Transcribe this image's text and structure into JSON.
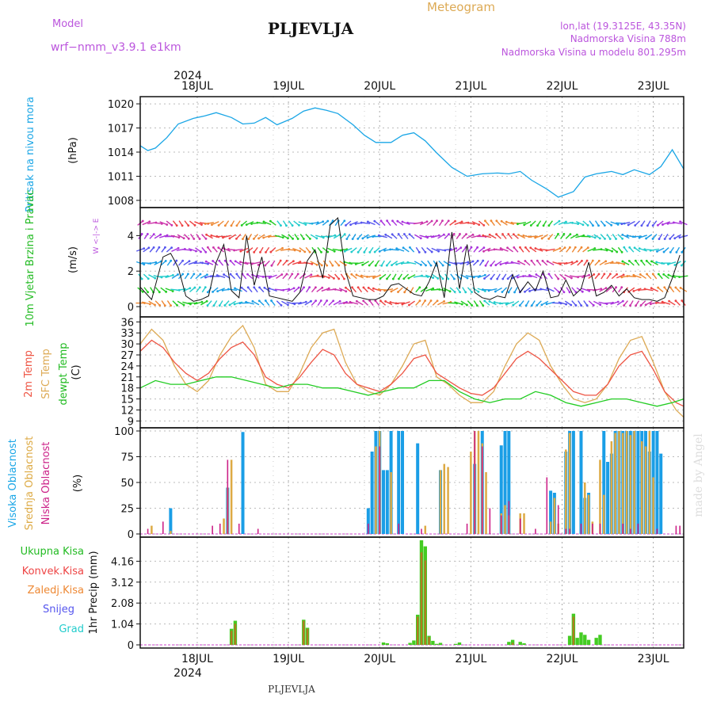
{
  "header": {
    "model_label": "Model",
    "model_name": "wrf−nmm_v3.9.1  e1km",
    "station": "PLJEVLJA",
    "product": "Meteogram",
    "lonlat": "lon,lat (19.3125E, 43.35N)",
    "altitude": "Nadmorska Visina 788m",
    "model_altitude": "Nadmorska Visina u modelu 801.295m",
    "footer_station": "PLJEVLJA",
    "watermark": "made by Angel"
  },
  "colors": {
    "pressure": "#1aa6e6",
    "t2m": "#ee5544",
    "sfc": "#ddaa55",
    "dew": "#22cc22",
    "high_cloud": "#1a9ee6",
    "mid_cloud": "#ddaa44",
    "low_cloud": "#cc2288",
    "total_precip": "#44cc22",
    "conv_precip": "#ee4444",
    "frozen_precip": "#ee8833",
    "snow": "#5555ee",
    "hail": "#22cccc",
    "title_purple": "#bb55dd",
    "meteogram_orange": "#ddaa55"
  },
  "time_axis": {
    "year": "2024",
    "labels": [
      "18JUL",
      "19JUL",
      "20JUL",
      "21JUL",
      "22JUL",
      "23JUL"
    ]
  },
  "chart_data": [
    {
      "type": "line",
      "panel": "pressure",
      "ylabel": "Pritisak na nivou mora",
      "unit": "(hPa)",
      "yticks": [
        "1008",
        "1011",
        "1014",
        "1017",
        "1020"
      ],
      "ylim": [
        1007.5,
        1020.5
      ],
      "xlim": [
        0,
        143
      ],
      "series": [
        {
          "x": [
            0,
            2,
            4,
            7,
            10,
            14,
            17,
            20,
            24,
            27,
            30,
            33,
            36,
            40,
            43,
            46,
            49,
            52,
            56,
            59,
            62,
            66,
            69,
            72,
            75,
            78,
            82,
            86,
            90,
            94,
            97,
            100,
            103,
            107,
            110,
            114,
            117,
            120,
            124,
            127,
            130,
            134,
            137,
            140,
            143
          ],
          "values": [
            1014.8,
            1014.2,
            1014.5,
            1015.8,
            1017.5,
            1018.2,
            1018.5,
            1018.9,
            1018.3,
            1017.5,
            1017.6,
            1018.3,
            1017.4,
            1018.2,
            1019.1,
            1019.5,
            1019.2,
            1018.8,
            1017.4,
            1016.1,
            1015.2,
            1015.2,
            1016.1,
            1016.4,
            1015.4,
            1013.9,
            1012.1,
            1011.0,
            1011.3,
            1011.4,
            1011.3,
            1011.6,
            1010.5,
            1009.4,
            1008.4,
            1009.1,
            1010.9,
            1011.3,
            1011.6,
            1011.2,
            1011.8,
            1011.2,
            1012.2,
            1014.3,
            1011.9
          ]
        }
      ]
    },
    {
      "type": "scatter",
      "panel": "wind",
      "ylabel": "10m Vjetar Brzina i Pravac",
      "unit": "(m/s)",
      "yticks": [
        "0",
        "2",
        "4"
      ],
      "ylim": [
        -0.4,
        5.4
      ],
      "compass": "W <-|-> E",
      "series": [
        {
          "name": "speed",
          "x": [
            0,
            3,
            6,
            8,
            10,
            12,
            14,
            16,
            18,
            20,
            22,
            24,
            26,
            28,
            30,
            32,
            34,
            36,
            38,
            40,
            42,
            44,
            46,
            48,
            50,
            52,
            54,
            56,
            58,
            60,
            62,
            64,
            66,
            68,
            70,
            72,
            74,
            76,
            78,
            80,
            82,
            84,
            86,
            88,
            90,
            92,
            94,
            96,
            98,
            100,
            102,
            104,
            106,
            108,
            110,
            112,
            114,
            116,
            118,
            120,
            122,
            124,
            126,
            128,
            130,
            132,
            134,
            136,
            138,
            140,
            142
          ],
          "values": [
            1.1,
            0.4,
            2.8,
            3.0,
            2.2,
            0.6,
            0.3,
            0.4,
            0.6,
            2.5,
            3.5,
            0.9,
            0.5,
            4.0,
            1.2,
            2.8,
            0.6,
            0.5,
            0.4,
            0.3,
            0.8,
            2.6,
            3.2,
            1.6,
            4.6,
            5.0,
            2.0,
            0.6,
            0.5,
            0.4,
            0.4,
            0.6,
            1.2,
            1.3,
            1.0,
            0.7,
            0.6,
            1.4,
            2.5,
            0.5,
            4.2,
            1.0,
            3.5,
            0.8,
            0.5,
            0.4,
            0.6,
            0.5,
            1.8,
            0.8,
            1.4,
            0.9,
            2.0,
            0.5,
            0.6,
            1.5,
            0.6,
            1.0,
            2.5,
            0.6,
            0.8,
            1.2,
            0.6,
            1.0,
            0.5,
            0.4,
            0.4,
            0.3,
            0.5,
            1.6,
            2.9
          ]
        }
      ]
    },
    {
      "type": "line",
      "panel": "temperature",
      "ylabel": "2m Temp / SFC Temp / dewpt Temp",
      "unit": "(C)",
      "yticks": [
        "9",
        "12",
        "15",
        "18",
        "21",
        "24",
        "27",
        "30",
        "33",
        "36"
      ],
      "ylim": [
        8,
        36.5
      ],
      "series": [
        {
          "name": "2m Temp",
          "x": [
            0,
            3,
            6,
            9,
            12,
            15,
            18,
            21,
            24,
            27,
            30,
            33,
            36,
            39,
            42,
            45,
            48,
            51,
            54,
            57,
            60,
            63,
            66,
            69,
            72,
            75,
            78,
            81,
            84,
            87,
            90,
            93,
            96,
            99,
            102,
            105,
            108,
            111,
            114,
            117,
            120,
            123,
            126,
            129,
            132,
            135,
            138,
            141,
            143
          ],
          "values": [
            28,
            31,
            29,
            25,
            22,
            20,
            22,
            26,
            29,
            30.5,
            27,
            21,
            19,
            18,
            21,
            25,
            28.5,
            27,
            22,
            19,
            18,
            17,
            19,
            22,
            26,
            27,
            22,
            20,
            18,
            16.5,
            16,
            18,
            22,
            26,
            28,
            26,
            23,
            20,
            17,
            16,
            16,
            19,
            24,
            27,
            28,
            23,
            17,
            14,
            13
          ]
        },
        {
          "name": "SFC Temp",
          "x": [
            0,
            3,
            6,
            9,
            12,
            15,
            18,
            21,
            24,
            27,
            30,
            33,
            36,
            39,
            42,
            45,
            48,
            51,
            54,
            57,
            60,
            63,
            66,
            69,
            72,
            75,
            78,
            81,
            84,
            87,
            90,
            93,
            96,
            99,
            102,
            105,
            108,
            111,
            114,
            117,
            120,
            123,
            126,
            129,
            132,
            135,
            138,
            141,
            143
          ],
          "values": [
            30,
            34,
            31,
            24,
            19,
            17,
            20,
            27,
            32,
            35,
            29,
            19,
            17,
            17,
            22,
            29,
            33,
            34,
            25,
            19,
            17,
            16,
            19,
            24,
            30,
            31,
            21,
            19,
            16,
            14,
            14,
            17,
            24,
            30,
            33,
            31,
            24,
            19,
            15,
            14,
            15,
            19,
            26,
            31,
            32,
            25,
            17,
            12,
            10
          ]
        },
        {
          "name": "dewpt Temp",
          "x": [
            0,
            4,
            8,
            12,
            16,
            20,
            24,
            28,
            32,
            36,
            40,
            44,
            48,
            52,
            56,
            60,
            64,
            68,
            72,
            76,
            80,
            84,
            88,
            92,
            96,
            100,
            104,
            108,
            112,
            116,
            120,
            124,
            128,
            132,
            136,
            140,
            143
          ],
          "values": [
            18,
            20,
            19,
            19,
            20,
            21,
            21,
            20,
            19,
            18,
            19,
            19,
            18,
            18,
            17,
            16,
            17,
            18,
            18,
            20,
            20,
            17,
            15,
            14,
            15,
            15,
            17,
            16,
            14,
            13,
            14,
            15,
            15,
            14,
            13,
            14,
            15
          ]
        }
      ]
    },
    {
      "type": "bar",
      "panel": "cloud",
      "ylabel": "Visoka Oblacnost / Srednja Oblacnost / Niska Oblacnost",
      "unit": "(%)",
      "yticks": [
        "0",
        "25",
        "50",
        "75",
        "100"
      ],
      "ylim": [
        0,
        100
      ],
      "series": [
        {
          "name": "Visoka Oblacnost",
          "x": [
            8,
            23,
            27,
            60,
            61,
            62,
            63,
            64,
            65,
            66,
            68,
            69,
            73,
            79,
            88,
            90,
            95,
            96,
            97,
            108,
            109,
            112,
            113,
            114,
            116,
            117,
            118,
            122,
            123,
            124,
            125,
            126,
            127,
            128,
            129,
            130,
            131,
            132,
            133,
            134,
            135,
            136,
            137
          ],
          "values": [
            25,
            45,
            99,
            25,
            80,
            100,
            100,
            62,
            62,
            100,
            100,
            100,
            88,
            62,
            68,
            100,
            86,
            100,
            100,
            42,
            40,
            80,
            100,
            100,
            100,
            35,
            40,
            100,
            70,
            78,
            100,
            100,
            100,
            100,
            100,
            100,
            100,
            100,
            100,
            80,
            100,
            100,
            78
          ]
        },
        {
          "name": "Srednja Oblacnost",
          "x": [
            3,
            8,
            22,
            23,
            24,
            62,
            63,
            66,
            75,
            79,
            80,
            81,
            87,
            88,
            89,
            90,
            91,
            95,
            96,
            97,
            100,
            101,
            108,
            109,
            110,
            112,
            113,
            117,
            118,
            119,
            121,
            122,
            124,
            125,
            126,
            127,
            128,
            129,
            130,
            132,
            133,
            134,
            135
          ],
          "values": [
            8,
            3,
            15,
            45,
            72,
            85,
            100,
            60,
            8,
            62,
            68,
            65,
            80,
            100,
            100,
            88,
            60,
            20,
            28,
            18,
            20,
            20,
            12,
            35,
            10,
            82,
            98,
            50,
            38,
            12,
            72,
            38,
            90,
            98,
            100,
            98,
            100,
            96,
            100,
            90,
            85,
            100,
            55
          ]
        },
        {
          "name": "Niska Oblacnost",
          "x": [
            2,
            6,
            19,
            21,
            23,
            26,
            31,
            60,
            63,
            68,
            74,
            86,
            88,
            90,
            92,
            95,
            97,
            100,
            104,
            107,
            110,
            112,
            113,
            116,
            119,
            121,
            127,
            129,
            131,
            136,
            141,
            142
          ],
          "values": [
            5,
            12,
            8,
            10,
            72,
            10,
            5,
            10,
            85,
            10,
            5,
            10,
            100,
            85,
            25,
            18,
            32,
            15,
            5,
            55,
            28,
            5,
            5,
            10,
            10,
            10,
            10,
            5,
            10,
            5,
            8,
            8
          ]
        }
      ]
    },
    {
      "type": "bar",
      "panel": "precip",
      "ylabel": "1hr Precip",
      "unit": "(mm)",
      "yticks": [
        "0",
        "1.04",
        "2.08",
        "3.12",
        "4.16"
      ],
      "ylim": [
        0,
        5.2
      ],
      "legend": [
        "Ukupna Kisa",
        "Konvek.Kisa",
        "Zaledj.Kisa",
        "Snijeg",
        "Grad"
      ],
      "series": [
        {
          "name": "Ukupna Kisa",
          "x": [
            24,
            25,
            43,
            44,
            64,
            65,
            71,
            72,
            73,
            74,
            75,
            76,
            77,
            78,
            79,
            83,
            84,
            97,
            98,
            100,
            101,
            113,
            114,
            115,
            116,
            117,
            118,
            120,
            121
          ],
          "values": [
            0.8,
            1.2,
            1.25,
            0.85,
            0.12,
            0.08,
            0.1,
            0.22,
            1.5,
            5.2,
            4.9,
            0.45,
            0.2,
            0.05,
            0.1,
            0.05,
            0.12,
            0.15,
            0.25,
            0.15,
            0.08,
            0.45,
            1.55,
            0.35,
            0.62,
            0.5,
            0.25,
            0.35,
            0.5
          ]
        },
        {
          "name": "Konvek.Kisa",
          "x": [
            24,
            25,
            43,
            44,
            73,
            74,
            75,
            76,
            98,
            114
          ],
          "values": [
            0.7,
            1.05,
            1.2,
            0.8,
            1.4,
            4.6,
            4.2,
            0.4,
            0.1,
            1.4
          ]
        }
      ]
    }
  ]
}
